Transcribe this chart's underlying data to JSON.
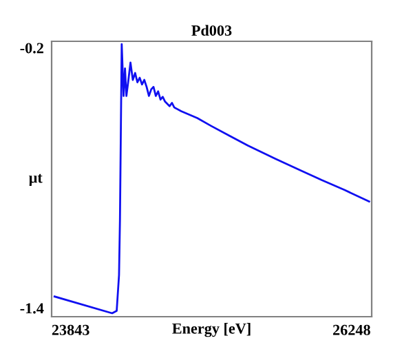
{
  "chart_data": {
    "type": "line",
    "title": "Pd003",
    "xlabel": "Energy [eV]",
    "ylabel": "μt",
    "xlim": [
      23680,
      26420
    ],
    "ylim": [
      -1.44,
      -0.17
    ],
    "xticks": [
      23843,
      26248
    ],
    "yticks": [
      -0.2,
      -1.4
    ],
    "grid": false,
    "legend": false,
    "marker": "none",
    "line_style": "solid",
    "series": [
      {
        "color": "#1010f0",
        "x": [
          23705,
          24198,
          24237,
          24257,
          24265,
          24272,
          24280,
          24296,
          24308,
          24320,
          24335,
          24355,
          24375,
          24395,
          24414,
          24434,
          24454,
          24473,
          24493,
          24513,
          24533,
          24552,
          24572,
          24592,
          24612,
          24631,
          24651,
          24690,
          24710,
          24730,
          24789,
          24927,
          25045,
          25203,
          25361,
          25597,
          25795,
          25992,
          26189,
          26398
        ],
        "values": [
          -1.347,
          -1.424,
          -1.413,
          -1.248,
          -0.994,
          -0.613,
          -0.183,
          -0.422,
          -0.295,
          -0.422,
          -0.359,
          -0.268,
          -0.348,
          -0.316,
          -0.359,
          -0.338,
          -0.369,
          -0.348,
          -0.38,
          -0.422,
          -0.391,
          -0.38,
          -0.422,
          -0.401,
          -0.439,
          -0.426,
          -0.448,
          -0.469,
          -0.454,
          -0.475,
          -0.492,
          -0.524,
          -0.56,
          -0.606,
          -0.651,
          -0.712,
          -0.761,
          -0.81,
          -0.856,
          -0.909
        ]
      }
    ]
  }
}
